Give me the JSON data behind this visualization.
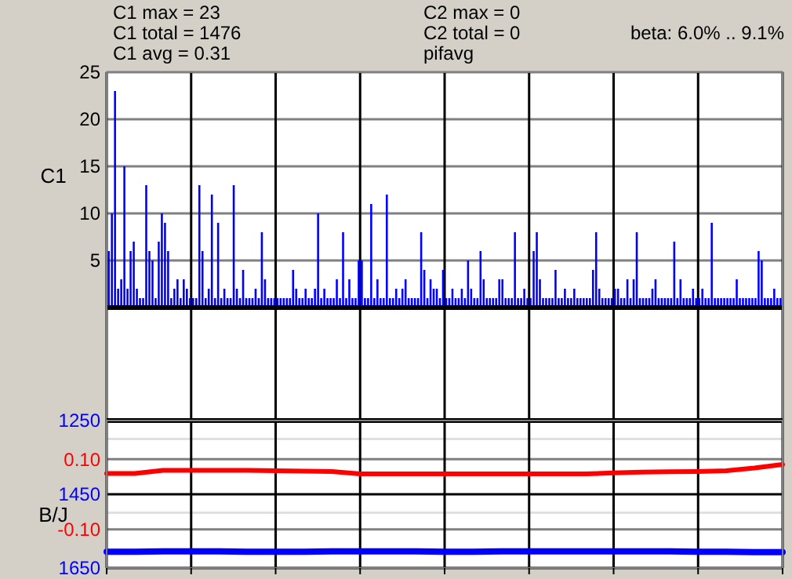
{
  "chart_data": [
    {
      "type": "bar",
      "ylabel": "C1",
      "annotations": [
        "C1 max = 23",
        "C1 total = 1476",
        "C1 avg = 0.31",
        "C2 max = 0",
        "C2 total = 0",
        "pifavg",
        "beta: 6.0% .. 9.1%"
      ],
      "ylim": [
        -12,
        25
      ],
      "yticks": [
        5,
        10,
        15,
        20,
        25
      ],
      "grid": true,
      "tick_labels": "y",
      "categories": [
        null,
        null,
        null,
        null,
        null,
        null,
        null,
        null,
        null,
        null,
        null,
        null,
        null,
        null,
        null,
        null,
        null,
        null,
        null,
        null,
        null,
        null,
        null,
        null,
        null,
        null,
        null,
        null,
        null,
        null,
        null,
        null,
        null,
        null,
        null,
        null,
        null,
        null,
        null,
        null,
        null,
        null,
        null,
        null,
        null,
        null,
        null,
        null,
        null,
        null,
        null,
        null,
        null,
        null,
        null,
        null,
        null,
        null,
        null,
        null,
        null,
        null,
        null,
        null,
        null,
        null,
        null,
        null,
        null,
        null,
        null,
        null,
        null,
        null,
        null,
        null,
        null,
        null,
        null,
        null,
        null,
        null,
        null,
        null,
        null,
        null,
        null,
        null,
        null,
        null,
        null,
        null,
        null,
        null,
        null,
        null,
        null,
        null,
        null,
        null,
        null,
        null,
        null,
        null,
        null,
        null,
        null,
        null,
        null,
        null,
        null,
        null,
        null,
        null,
        null,
        null,
        null,
        null,
        null,
        null,
        null,
        null,
        null,
        null,
        null,
        null,
        null,
        null,
        null,
        null,
        null,
        null,
        null,
        null,
        null,
        null,
        null,
        null,
        null,
        null,
        null,
        null,
        null,
        null,
        null,
        null,
        null,
        null,
        null,
        null,
        null,
        null,
        null,
        null,
        null,
        null,
        null,
        null,
        null,
        null,
        null,
        null,
        null,
        null,
        null,
        null,
        null,
        null,
        null,
        null,
        null,
        null,
        null,
        null,
        null,
        null,
        null,
        null,
        null,
        null,
        null,
        null,
        null,
        null,
        null,
        null,
        null,
        null,
        null,
        null,
        null,
        null,
        null,
        null,
        null,
        null,
        null,
        null,
        null,
        null,
        null,
        null,
        null,
        null,
        null,
        null,
        null,
        null,
        null,
        null,
        null,
        null,
        null,
        null,
        null,
        null
      ],
      "series": [
        {
          "color": "#0000ff",
          "values": [
            6,
            10,
            23,
            2,
            3,
            15,
            2,
            6,
            7,
            2,
            1,
            1,
            13,
            6,
            5,
            1,
            7,
            10,
            9,
            6,
            1,
            2,
            3,
            1,
            3,
            2,
            1,
            1,
            1,
            13,
            6,
            1,
            2,
            12,
            1,
            9,
            1,
            2,
            1,
            1,
            13,
            2,
            1,
            4,
            1,
            1,
            1,
            2,
            1,
            8,
            3,
            1,
            1,
            1,
            1,
            1,
            1,
            1,
            1,
            4,
            2,
            1,
            1,
            2,
            1,
            1,
            2,
            10,
            1,
            2,
            1,
            1,
            1,
            3,
            1,
            8,
            1,
            3,
            1,
            1,
            5,
            5,
            1,
            1,
            11,
            1,
            3,
            1,
            1,
            12,
            1,
            1,
            2,
            1,
            2,
            3,
            1,
            1,
            1,
            1,
            8,
            4,
            1,
            3,
            2,
            2,
            1,
            4,
            1,
            1,
            2,
            1,
            1,
            2,
            1,
            5,
            2,
            1,
            1,
            6,
            3,
            1,
            1,
            1,
            1,
            3,
            3,
            1,
            1,
            1,
            8,
            1,
            1,
            2,
            1,
            1,
            6,
            8,
            3,
            1,
            1,
            1,
            1,
            4,
            1,
            1,
            2,
            1,
            1,
            2,
            1,
            1,
            1,
            1,
            1,
            4,
            8,
            2,
            1,
            1,
            1,
            1,
            2,
            2,
            1,
            1,
            3,
            1,
            3,
            8,
            1,
            1,
            1,
            1,
            2,
            3,
            1,
            1,
            1,
            1,
            1,
            7,
            1,
            3,
            1,
            1,
            1,
            2,
            1,
            1,
            2,
            1,
            1,
            9,
            1,
            1,
            1,
            1,
            1,
            1,
            1,
            3,
            1,
            1,
            1,
            1,
            1,
            1,
            6,
            5,
            1,
            1,
            1,
            2,
            1,
            1
          ]
        }
      ]
    },
    {
      "type": "line",
      "ylabel": "B/J",
      "categories": [
        null,
        null,
        null,
        null,
        null,
        null,
        null,
        null,
        null,
        null,
        null,
        null,
        null,
        null,
        null,
        null,
        null,
        null,
        null,
        null,
        null,
        null,
        null,
        null,
        null
      ],
      "ylim": [
        -0.21,
        0.21
      ],
      "yticks": [
        {
          "value": -0.1,
          "label": "-0.10"
        },
        {
          "value": 0.1,
          "label": "0.10"
        }
      ],
      "y2lim": [
        1650,
        1250
      ],
      "y2ticks": [
        1250,
        {
          "value": 1300,
          "label": null
        },
        1450,
        {
          "value": 1500,
          "label": null
        },
        1650
      ],
      "grid": true,
      "tick_labels": "y",
      "series": [
        {
          "color": "#ff0000",
          "values": [
            0.059,
            0.059,
            0.068,
            0.068,
            0.068,
            0.068,
            0.067,
            0.066,
            0.065,
            0.058,
            0.058,
            0.058,
            0.058,
            0.058,
            0.058,
            0.058,
            0.058,
            0.058,
            0.061,
            0.063,
            0.064,
            0.065,
            0.067,
            0.075,
            0.085
          ]
        },
        {
          "color": "#0000ff",
          "axis": "y2",
          "values": [
            1606,
            1606,
            1605,
            1605,
            1605,
            1606,
            1606,
            1606,
            1605,
            1605,
            1605,
            1605,
            1606,
            1606,
            1605,
            1605,
            1605,
            1605,
            1605,
            1605,
            1605,
            1606,
            1606,
            1607,
            1607
          ]
        }
      ]
    }
  ]
}
